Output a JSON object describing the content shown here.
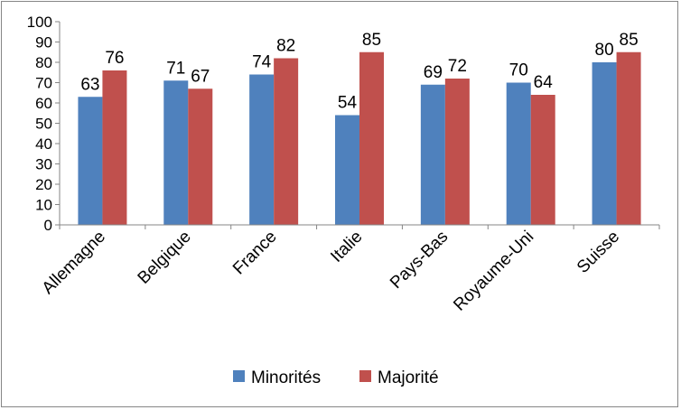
{
  "chart_data": {
    "type": "bar",
    "title": "",
    "xlabel": "",
    "ylabel": "",
    "ylim": [
      0,
      100
    ],
    "yticks": [
      "0",
      "10",
      "20",
      "30",
      "40",
      "50",
      "60",
      "70",
      "80",
      "90",
      "100"
    ],
    "grid": false,
    "legend_position": "bottom",
    "categories": [
      "Allemagne",
      "Belgique",
      "France",
      "Italie",
      "Pays-Bas",
      "Royaume-Uni",
      "Suisse"
    ],
    "series": [
      {
        "name": "Minorités",
        "color": "#4F81BD",
        "values": [
          63,
          71,
          74,
          54,
          69,
          70,
          80
        ]
      },
      {
        "name": "Majorité",
        "color": "#C0504D",
        "values": [
          76,
          67,
          82,
          85,
          72,
          64,
          85
        ]
      }
    ]
  }
}
